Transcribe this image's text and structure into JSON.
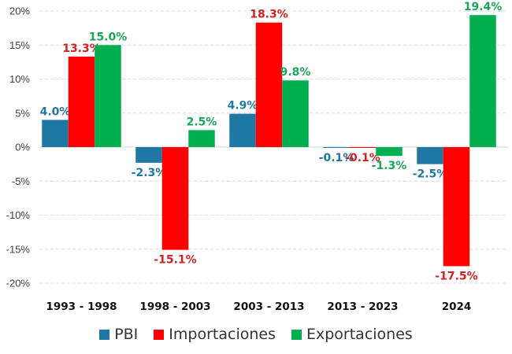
{
  "chart_data": {
    "type": "bar",
    "title": "",
    "xlabel": "",
    "ylabel": "",
    "categories": [
      "1993 - 1998",
      "1998 - 2003",
      "2003 - 2013",
      "2013 - 2023",
      "2024"
    ],
    "series": [
      {
        "name": "PBI",
        "color": "#1F77A4",
        "values": [
          4.0,
          -2.3,
          4.9,
          -0.1,
          -2.5
        ],
        "labels": [
          "4.0%",
          "-2.3%",
          "4.9%",
          "-0.1%",
          "-2.5%"
        ]
      },
      {
        "name": "Importaciones",
        "color": "#FF0000",
        "label_color": "#D42020",
        "values": [
          13.3,
          -15.1,
          18.3,
          -0.1,
          -17.5
        ],
        "labels": [
          "13.3%",
          "-15.1%",
          "18.3%",
          "-0.1%",
          "-17.5%"
        ]
      },
      {
        "name": "Exportaciones",
        "color": "#00B050",
        "label_color": "#1AA55A",
        "values": [
          15.0,
          2.5,
          9.8,
          -1.3,
          19.4
        ],
        "labels": [
          "15.0%",
          "2.5%",
          "9.8%",
          "-1.3%",
          "19.4%"
        ]
      }
    ],
    "ylim": [
      -20,
      20
    ],
    "yticks": [
      20,
      15,
      10,
      5,
      0,
      -5,
      -10,
      -15,
      -20
    ],
    "ytick_labels": [
      "20%",
      "15%",
      "10%",
      "5%",
      "0%",
      "-5%",
      "-10%",
      "-15%",
      "-20%"
    ],
    "grid": true,
    "legend_position": "bottom"
  }
}
